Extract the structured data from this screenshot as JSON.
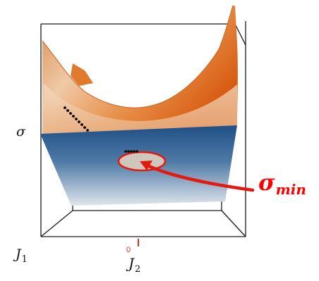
{
  "labels": {
    "sigma": "σ",
    "j1_main": "J",
    "j1_sub": "1",
    "j2_main": "J",
    "j2_sub": "2",
    "zero_tick": "0",
    "sigma_min_main": "σ",
    "sigma_min_sub": "min"
  },
  "colors": {
    "surface_orange": "#e06a1a",
    "surface_light": "#f2d2b4",
    "plane_blue": "#25558a",
    "plane_light": "#cfd8e2",
    "highlight_red": "#e41a10",
    "box_line": "#1a1a1a",
    "dot_black": "#000000"
  }
}
